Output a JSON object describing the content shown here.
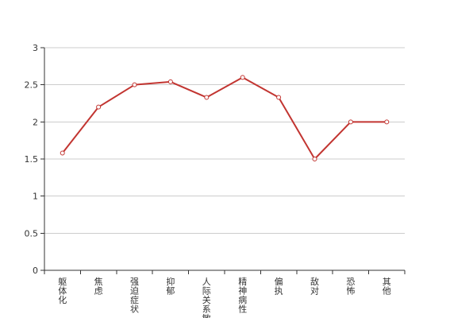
{
  "chart_data": {
    "type": "line",
    "categories": [
      "躯体化",
      "焦虑",
      "强迫症状",
      "抑郁",
      "人际关系敏感",
      "精神病性",
      "偏执",
      "敌对",
      "恐怖",
      "其他"
    ],
    "values": [
      1.58,
      2.2,
      2.5,
      2.54,
      2.33,
      2.6,
      2.33,
      1.5,
      2.0,
      2.0
    ],
    "ylim": [
      0,
      3
    ],
    "yticks": [
      "0",
      "0.5",
      "1",
      "1.5",
      "2",
      "2.5",
      "3"
    ],
    "grid": true,
    "line_color": "#c23531",
    "grid_color": "#cccccc",
    "axis_color": "#333333"
  }
}
